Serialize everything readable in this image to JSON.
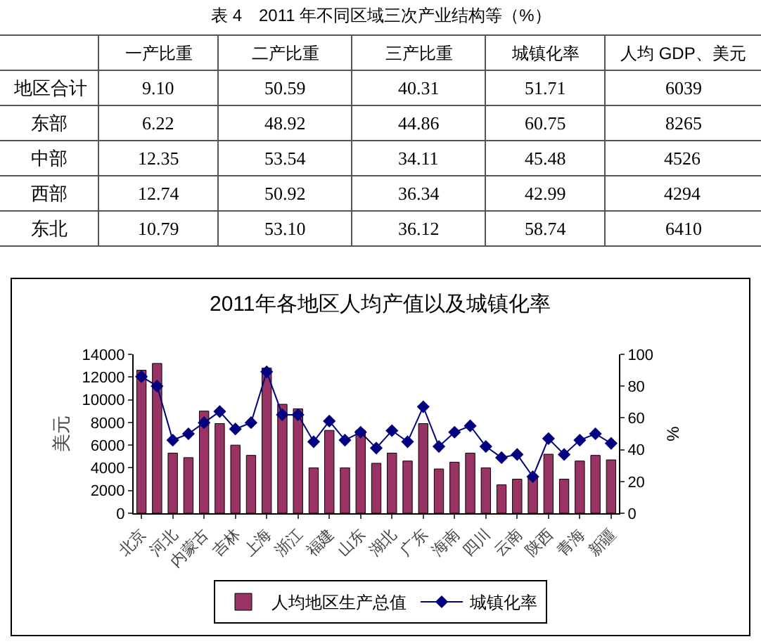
{
  "chart_data": [
    {
      "type": "heatmap",
      "title": "表 4　2011 年不同区域三次产业结构等（%）",
      "categories": [
        "一产比重",
        "二产比重",
        "三产比重",
        "城镇化率",
        "人均 GDP、美元"
      ],
      "y_categories": [
        "地区合计",
        "东部",
        "中部",
        "西部",
        "东北"
      ],
      "cells": [
        [
          9.1,
          50.59,
          40.31,
          51.71,
          6039
        ],
        [
          6.22,
          48.92,
          44.86,
          60.75,
          8265
        ],
        [
          12.35,
          53.54,
          34.11,
          45.48,
          4526
        ],
        [
          12.74,
          50.92,
          36.34,
          42.99,
          4294
        ],
        [
          10.79,
          53.1,
          36.12,
          58.74,
          6410
        ]
      ],
      "cell_labels": [
        [
          "9.10",
          "50.59",
          "40.31",
          "51.71",
          "6039"
        ],
        [
          "6.22",
          "48.92",
          "44.86",
          "60.75",
          "8265"
        ],
        [
          "12.35",
          "53.54",
          "34.11",
          "45.48",
          "4526"
        ],
        [
          "12.74",
          "50.92",
          "36.34",
          "42.99",
          "4294"
        ],
        [
          "10.79",
          "53.10",
          "36.12",
          "58.74",
          "6410"
        ]
      ],
      "grid": true
    },
    {
      "type": "bar",
      "title": "2011年各地区人均产值以及城镇化率",
      "ylabel": "美元",
      "y2label": "%",
      "categories": [
        "北京",
        null,
        "河北",
        null,
        "内蒙古",
        null,
        "吉林",
        null,
        "上海",
        null,
        "浙江",
        null,
        "福建",
        null,
        "山东",
        null,
        "湖北",
        null,
        "广东",
        null,
        "海南",
        null,
        "四川",
        null,
        "云南",
        null,
        "陕西",
        null,
        "青海",
        null,
        "新疆"
      ],
      "ylim": [
        0,
        14000
      ],
      "yticks": [
        0,
        2000,
        4000,
        6000,
        8000,
        10000,
        12000,
        14000
      ],
      "y2lim": [
        0,
        100
      ],
      "y2ticks": [
        0,
        20,
        40,
        60,
        80,
        100
      ],
      "series": [
        {
          "name": "人均地区生产总值",
          "type": "bar",
          "color": "#993366",
          "values": [
            12600,
            13200,
            5300,
            4900,
            9000,
            7900,
            6000,
            5100,
            12800,
            9600,
            9200,
            4000,
            7300,
            4000,
            7300,
            4400,
            5300,
            4600,
            7900,
            3900,
            4500,
            5300,
            4000,
            2500,
            3000,
            3100,
            5200,
            3000,
            4600,
            5100,
            4700
          ]
        },
        {
          "name": "城镇化率",
          "type": "line",
          "axis": "y2",
          "color": "#000080",
          "marker": "diamond",
          "values": [
            86,
            80,
            46,
            50,
            57,
            64,
            53,
            57,
            89,
            62,
            62,
            45,
            58,
            46,
            51,
            41,
            52,
            45,
            67,
            42,
            51,
            55,
            42,
            35,
            37,
            23,
            47,
            37,
            46,
            50,
            44
          ]
        }
      ],
      "legend": "bottom",
      "grid": false
    }
  ]
}
